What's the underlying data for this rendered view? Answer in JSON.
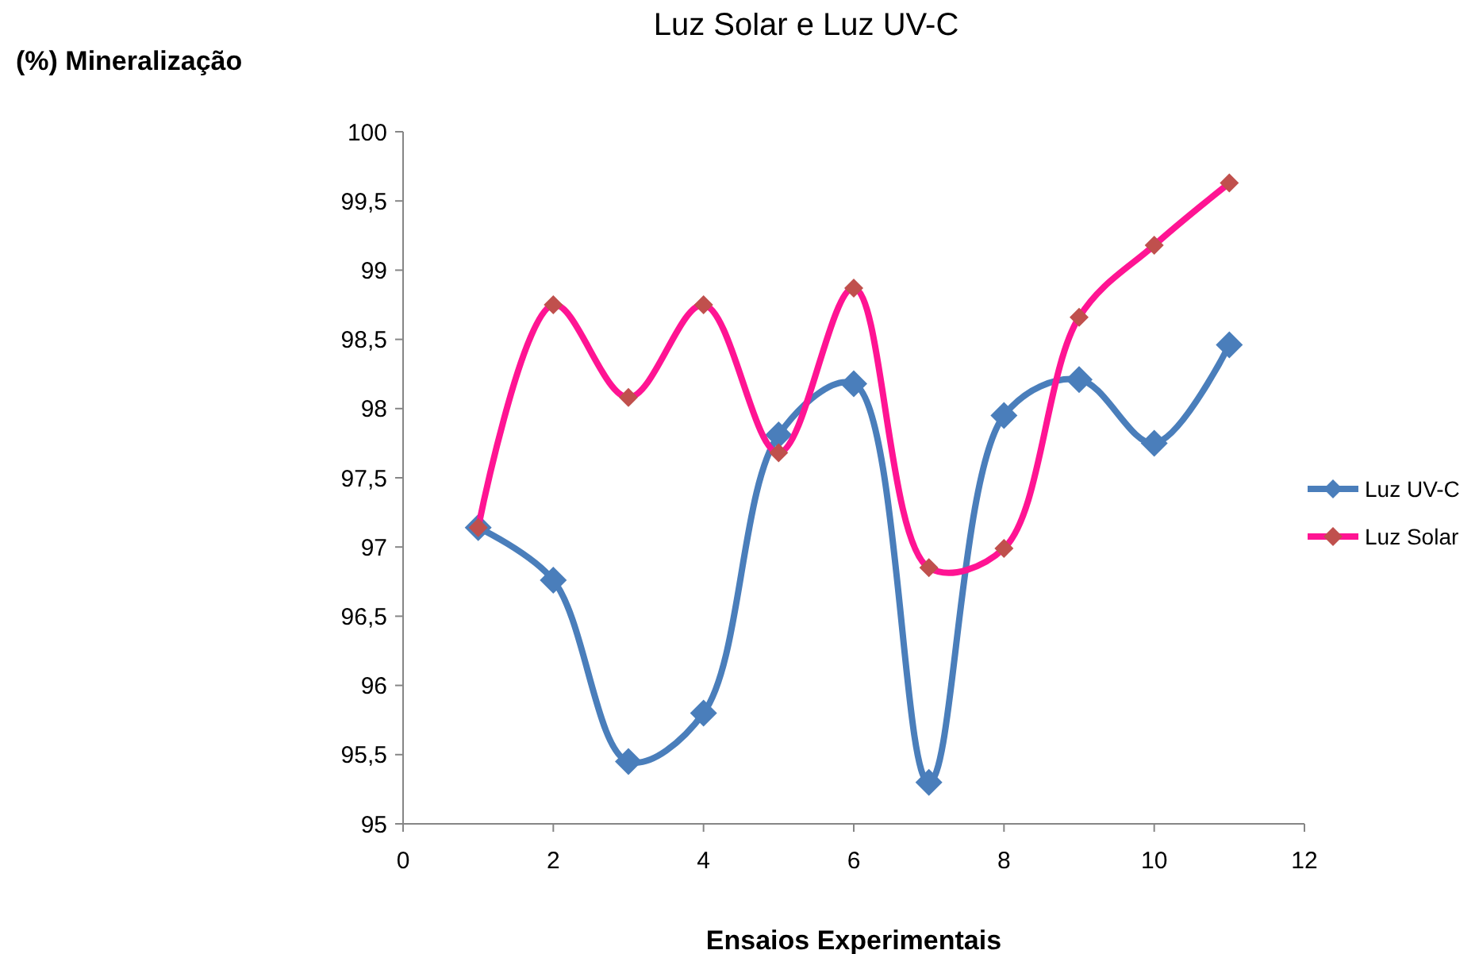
{
  "chart_data": {
    "type": "line",
    "title": "Luz Solar e Luz UV-C",
    "ylabel": "(%) Mineralização",
    "xlabel": "Ensaios Experimentais",
    "x": [
      1,
      2,
      3,
      4,
      5,
      6,
      7,
      8,
      9,
      10,
      11
    ],
    "series": [
      {
        "name": "Luz UV-C",
        "color": "#4a7ebb",
        "values": [
          97.14,
          96.76,
          95.45,
          95.8,
          97.81,
          98.18,
          95.3,
          97.95,
          98.21,
          97.75,
          98.46
        ]
      },
      {
        "name": "Luz Solar",
        "color": "#ff1493",
        "values": [
          97.14,
          98.75,
          98.08,
          98.75,
          97.68,
          98.87,
          96.85,
          96.99,
          98.66,
          99.18,
          99.63
        ]
      }
    ],
    "xlim": [
      0,
      12
    ],
    "xticks": [
      0,
      2,
      4,
      6,
      8,
      10,
      12
    ],
    "ylim": [
      95,
      100
    ],
    "yticks": [
      {
        "value": 95,
        "label": "95"
      },
      {
        "value": 95.5,
        "label": "95,5"
      },
      {
        "value": 96,
        "label": "96"
      },
      {
        "value": 96.5,
        "label": "96,5"
      },
      {
        "value": 97,
        "label": "97"
      },
      {
        "value": 97.5,
        "label": "97,5"
      },
      {
        "value": 98,
        "label": "98"
      },
      {
        "value": 98.5,
        "label": "98,5"
      },
      {
        "value": 99,
        "label": "99"
      },
      {
        "value": 99.5,
        "label": "99,5"
      },
      {
        "value": 100,
        "label": "100"
      }
    ],
    "marker": "diamond",
    "line_style": "solid",
    "legend": "right",
    "grid": false
  }
}
